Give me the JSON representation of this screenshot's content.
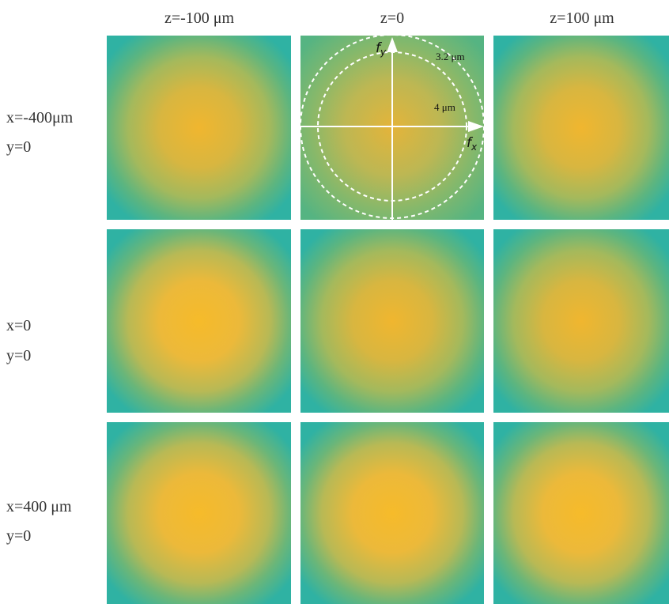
{
  "columns": [
    "z=-100 μm",
    "z=0",
    "z=100 μm"
  ],
  "rows": [
    {
      "x": "x=-400μm",
      "y": "y=0"
    },
    {
      "x": "x=0",
      "y": "y=0"
    },
    {
      "x": "x=400 μm",
      "y": "y=0"
    }
  ],
  "inset": {
    "outer_circle_label": "3.2 μm",
    "inner_circle_label": "4 μm",
    "fy": {
      "symbol": "f",
      "subscript": "y"
    },
    "fx": {
      "symbol": "f",
      "subscript": "x"
    }
  }
}
